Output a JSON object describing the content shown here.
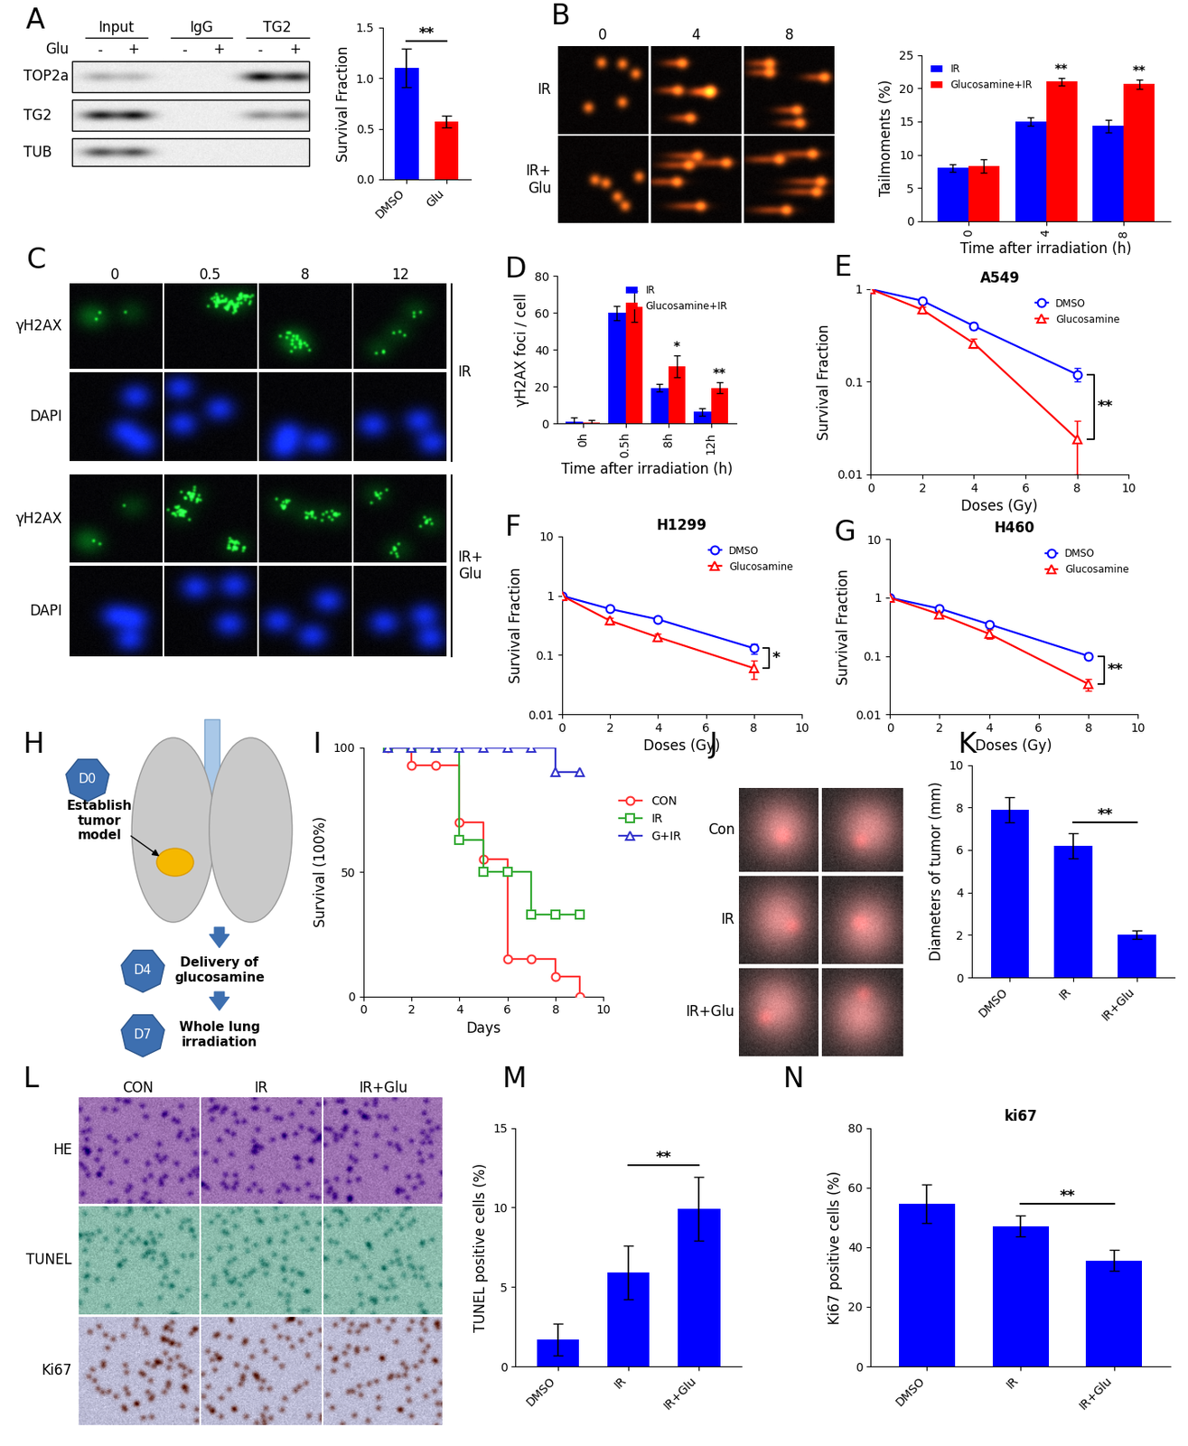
{
  "panel_labels": [
    "A",
    "B",
    "C",
    "D",
    "E",
    "F",
    "G",
    "H",
    "I",
    "J",
    "K",
    "L",
    "M",
    "N"
  ],
  "chart_data": [
    {
      "type": "bar",
      "categories": [
        "DMSO",
        "Glu"
      ],
      "values": [
        1.1,
        0.57
      ],
      "errors": [
        0.19,
        0.06
      ],
      "colors": [
        "#0000ff",
        "#ff0000"
      ],
      "ylabel": "Survival Fraction",
      "ylim": [
        0,
        1.5
      ],
      "yticks": [
        {
          "value": 0,
          "label": "0.0"
        },
        0.5,
        {
          "value": 1,
          "label": "1.0"
        },
        1.5
      ],
      "significance": [
        {
          "between": [
            0,
            1
          ],
          "label": "**"
        }
      ]
    },
    {
      "type": "bar",
      "categories": [
        "0",
        "4",
        "8"
      ],
      "series": [
        {
          "name": "IR",
          "color": "#0000ff",
          "values": [
            8,
            15,
            14.3
          ],
          "errors": [
            0.6,
            0.6,
            0.9
          ]
        },
        {
          "name": "Glucosamine+IR",
          "color": "#ff0000",
          "values": [
            8.3,
            21,
            20.6
          ],
          "errors": [
            1,
            0.6,
            0.7
          ]
        }
      ],
      "xlabel": "Time after irradiation (h)",
      "ylabel": "Tailmoments (%)",
      "ylim": [
        0,
        25
      ],
      "yticks": [
        0,
        5,
        10,
        15,
        20,
        25
      ],
      "legend": "upper left",
      "significance": [
        {
          "category": 1,
          "series": 1,
          "label": "**"
        },
        {
          "category": 2,
          "series": 1,
          "label": "**"
        }
      ]
    },
    {
      "type": "bar",
      "categories": [
        "0h",
        "0.5h",
        "8h",
        "12h"
      ],
      "series": [
        {
          "name": "IR",
          "color": "#0000ff",
          "values": [
            1.2,
            60,
            19.5,
            6.5
          ],
          "errors": [
            2,
            4,
            2,
            2
          ]
        },
        {
          "name": "Glucosamine+IR",
          "color": "#ff0000",
          "values": [
            0.8,
            63.5,
            31,
            19.5
          ],
          "errors": [
            1,
            8.5,
            6,
            3
          ]
        }
      ],
      "xlabel": "Time after irradiation (h)",
      "ylabel": "γH2AX foci / cell",
      "ylim": [
        0,
        80
      ],
      "yticks": [
        0,
        20,
        40,
        60,
        80
      ],
      "legend": "upper right",
      "significance": [
        {
          "category": 2,
          "series": 1,
          "label": "*"
        },
        {
          "category": 3,
          "series": 1,
          "label": "**"
        }
      ]
    },
    {
      "type": "line",
      "title": "A549",
      "x": [
        0,
        2,
        4,
        8
      ],
      "series": [
        {
          "name": "DMSO",
          "color": "#0000ff",
          "marker": "circle",
          "values": [
            1,
            0.75,
            0.4,
            0.12
          ],
          "errors": [
            0,
            0.03,
            0.03,
            0.02
          ]
        },
        {
          "name": "Glucosamine",
          "color": "#ff0000",
          "marker": "triangle",
          "values": [
            1,
            0.6,
            0.26,
            0.024
          ],
          "errors": [
            0,
            0.05,
            0.03,
            0.014
          ]
        }
      ],
      "xlabel": "Doses (Gy)",
      "ylabel": "Survival Fraction",
      "log": "y",
      "xlim": [
        0,
        10
      ],
      "xticks": [
        0,
        2,
        4,
        6,
        8,
        10
      ],
      "ylim": [
        0.01,
        1
      ],
      "yticks": [
        0.01,
        0.1,
        1
      ],
      "legend": "upper right",
      "significance": [
        {
          "index": 3,
          "label": "**"
        }
      ]
    },
    {
      "type": "line",
      "title": "H1299",
      "x": [
        0,
        2,
        4,
        8
      ],
      "series": [
        {
          "name": "DMSO",
          "color": "#0000ff",
          "marker": "circle",
          "values": [
            1,
            0.6,
            0.4,
            0.13
          ],
          "errors": [
            0,
            0.04,
            0.03,
            0.025
          ]
        },
        {
          "name": "Glucosamine",
          "color": "#ff0000",
          "marker": "triangle",
          "values": [
            1,
            0.38,
            0.2,
            0.06
          ],
          "errors": [
            0,
            0.05,
            0.03,
            0.02
          ]
        }
      ],
      "xlabel": "Doses (Gy)",
      "ylabel": "Survival Fraction",
      "log": "y",
      "xlim": [
        0,
        10
      ],
      "xticks": [
        0,
        2,
        4,
        6,
        8,
        10
      ],
      "ylim": [
        0.01,
        10
      ],
      "yticks": [
        0.01,
        0.1,
        1,
        10
      ],
      "legend": "upper right",
      "significance": [
        {
          "index": 3,
          "label": "*"
        }
      ]
    },
    {
      "type": "line",
      "title": "H460",
      "x": [
        0,
        2,
        4,
        8
      ],
      "series": [
        {
          "name": "DMSO",
          "color": "#0000ff",
          "marker": "circle",
          "values": [
            1,
            0.65,
            0.35,
            0.1
          ],
          "errors": [
            0,
            0.04,
            0.03,
            0.012
          ]
        },
        {
          "name": "Glucosamine",
          "color": "#ff0000",
          "marker": "triangle",
          "values": [
            1,
            0.52,
            0.24,
            0.033
          ],
          "errors": [
            0,
            0.04,
            0.04,
            0.008
          ]
        }
      ],
      "xlabel": "Doses (Gy)",
      "ylabel": "Survival Fraction",
      "log": "y",
      "xlim": [
        0,
        10
      ],
      "xticks": [
        0,
        2,
        4,
        6,
        8,
        10
      ],
      "ylim": [
        0.01,
        10
      ],
      "yticks": [
        0.01,
        0.1,
        1,
        10
      ],
      "legend": "upper right",
      "significance": [
        {
          "index": 3,
          "label": "**"
        }
      ]
    },
    {
      "type": "line",
      "x": [
        1,
        2,
        3,
        4,
        5,
        6,
        7,
        8,
        9
      ],
      "series": [
        {
          "name": "CON",
          "color": "#ff3333",
          "marker": "circle",
          "line_style": "step",
          "values": [
            100,
            93,
            93,
            70,
            55,
            15,
            15,
            8,
            0
          ]
        },
        {
          "name": "IR",
          "color": "#33aa33",
          "marker": "square",
          "line_style": "step",
          "values": [
            100,
            100,
            100,
            63,
            50,
            50,
            33,
            33,
            33
          ]
        },
        {
          "name": "G+IR",
          "color": "#3333cc",
          "marker": "triangle",
          "line_style": "step",
          "values": [
            100,
            100,
            100,
            100,
            100,
            100,
            100,
            90,
            90
          ]
        }
      ],
      "xlabel": "Days",
      "ylabel": "Survival (100%)",
      "xlim": [
        0,
        10
      ],
      "xticks": [
        0,
        2,
        4,
        6,
        8,
        10
      ],
      "ylim": [
        0,
        100
      ],
      "yticks": [
        0,
        50,
        100
      ],
      "legend": "right"
    },
    {
      "type": "bar",
      "categories": [
        "DMSO",
        "IR",
        "IR+Glu"
      ],
      "values": [
        7.9,
        6.2,
        2.0
      ],
      "errors": [
        0.6,
        0.6,
        0.2
      ],
      "color": "#0000ff",
      "ylabel": "Diameters of tumor (mm)",
      "ylim": [
        0,
        10
      ],
      "yticks": [
        0,
        2,
        4,
        6,
        8,
        10
      ],
      "significance": [
        {
          "between": [
            1,
            2
          ],
          "label": "**"
        }
      ]
    },
    {
      "type": "bar",
      "categories": [
        "DMSO",
        "IR",
        "IR+Glu"
      ],
      "values": [
        1.7,
        5.9,
        9.9
      ],
      "errors": [
        1.0,
        1.7,
        2.0
      ],
      "color": "#0000ff",
      "ylabel": "TUNEL positive cells (%)",
      "ylim": [
        0,
        15
      ],
      "yticks": [
        0,
        5,
        10,
        15
      ],
      "significance": [
        {
          "between": [
            1,
            2
          ],
          "label": "**"
        }
      ]
    },
    {
      "type": "bar",
      "title": "ki67",
      "categories": [
        "DMSO",
        "IR",
        "IR+Glu"
      ],
      "values": [
        54.5,
        47,
        35.5
      ],
      "errors": [
        6.5,
        3.5,
        3.5
      ],
      "color": "#0000ff",
      "ylabel": "Ki67 positive cells (%)",
      "ylim": [
        0,
        80
      ],
      "yticks": [
        0,
        20,
        40,
        60,
        80
      ],
      "significance": [
        {
          "between": [
            1,
            2
          ],
          "label": "**"
        }
      ]
    }
  ],
  "images": {
    "western_blot": {
      "groups": [
        "Input",
        "IgG",
        "TG2"
      ],
      "treatment": "Glu",
      "lanes": [
        "-",
        "+",
        "-",
        "+",
        "-",
        "+"
      ],
      "rows": [
        "TOP2a",
        "TG2",
        "TUB"
      ]
    },
    "comet": {
      "columns": [
        "0",
        "4",
        "8"
      ],
      "rows": [
        "IR",
        "IR+\nGlu"
      ]
    },
    "immunofluorescence": {
      "columns": [
        "0",
        "0.5",
        "8",
        "12"
      ],
      "rows": [
        "γH2AX",
        "DAPI",
        "γH2AX",
        "DAPI"
      ],
      "groups": [
        "IR",
        "IR+\nGlu"
      ]
    },
    "lung_photos": {
      "rows": [
        "Con",
        "IR",
        "IR+Glu"
      ]
    },
    "histology": {
      "columns": [
        "CON",
        "IR",
        "IR+Glu"
      ],
      "rows": [
        "HE",
        "TUNEL",
        "Ki67"
      ]
    }
  },
  "diagram": {
    "steps": [
      {
        "day": "D0",
        "text": "Establish\ntumor\nmodel"
      },
      {
        "day": "D4",
        "text": "Delivery of\nglucosamine"
      },
      {
        "day": "D7",
        "text": "Whole lung\nirradiation"
      }
    ]
  }
}
